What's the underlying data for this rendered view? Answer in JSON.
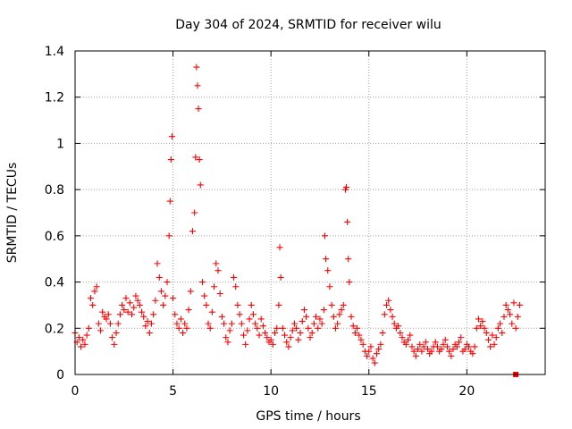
{
  "chart_data": {
    "type": "scatter",
    "title": "Day 304 of 2024, SRMTID for receiver wilu",
    "xlabel": "GPS time / hours",
    "ylabel": "SRMTID / TECUs",
    "xlim": [
      0,
      24
    ],
    "ylim": [
      0,
      1.4
    ],
    "xticks": [
      0,
      5,
      10,
      15,
      20
    ],
    "xtick_labels": [
      "0",
      "5",
      "10",
      "15",
      "20"
    ],
    "yticks": [
      0,
      0.2,
      0.4,
      0.6,
      0.8,
      1.0,
      1.2,
      1.4
    ],
    "ytick_labels": [
      "0",
      "0.2",
      "0.4",
      "0.6",
      "0.8",
      "1",
      "1.2",
      "1.4"
    ],
    "grid": true,
    "marker": "plus",
    "series": [
      {
        "name": "SRMTID",
        "color": "#ff0000",
        "x": [
          0.0,
          0.1,
          0.2,
          0.3,
          0.4,
          0.5,
          0.6,
          0.7,
          0.8,
          0.9,
          1.0,
          1.1,
          1.2,
          1.3,
          1.4,
          1.5,
          1.6,
          1.7,
          1.8,
          1.9,
          2.0,
          2.1,
          2.2,
          2.3,
          2.4,
          2.5,
          2.6,
          2.7,
          2.8,
          2.9,
          3.0,
          3.1,
          3.2,
          3.3,
          3.4,
          3.5,
          3.6,
          3.7,
          3.8,
          3.9,
          4.0,
          4.1,
          4.2,
          4.3,
          4.4,
          4.5,
          4.6,
          4.7,
          4.8,
          4.85,
          4.9,
          4.95,
          5.0,
          5.1,
          5.2,
          5.3,
          5.4,
          5.5,
          5.6,
          5.7,
          5.8,
          5.9,
          6.0,
          6.1,
          6.15,
          6.2,
          6.25,
          6.3,
          6.35,
          6.4,
          6.5,
          6.6,
          6.7,
          6.8,
          6.9,
          7.0,
          7.1,
          7.2,
          7.3,
          7.4,
          7.5,
          7.6,
          7.7,
          7.8,
          7.9,
          8.0,
          8.1,
          8.2,
          8.3,
          8.4,
          8.5,
          8.6,
          8.7,
          8.8,
          8.9,
          9.0,
          9.1,
          9.2,
          9.3,
          9.4,
          9.5,
          9.6,
          9.7,
          9.8,
          9.9,
          10.0,
          10.1,
          10.2,
          10.3,
          10.4,
          10.45,
          10.5,
          10.6,
          10.7,
          10.8,
          10.9,
          11.0,
          11.1,
          11.2,
          11.3,
          11.4,
          11.5,
          11.6,
          11.7,
          11.8,
          11.9,
          12.0,
          12.1,
          12.2,
          12.3,
          12.4,
          12.5,
          12.6,
          12.7,
          12.75,
          12.8,
          12.9,
          13.0,
          13.1,
          13.2,
          13.3,
          13.4,
          13.5,
          13.6,
          13.7,
          13.8,
          13.85,
          13.9,
          13.95,
          14.0,
          14.1,
          14.2,
          14.3,
          14.4,
          14.5,
          14.6,
          14.7,
          14.8,
          14.9,
          15.0,
          15.1,
          15.2,
          15.3,
          15.4,
          15.5,
          15.6,
          15.7,
          15.8,
          15.9,
          16.0,
          16.1,
          16.2,
          16.3,
          16.4,
          16.5,
          16.6,
          16.7,
          16.8,
          16.9,
          17.0,
          17.1,
          17.2,
          17.3,
          17.4,
          17.5,
          17.6,
          17.7,
          17.8,
          17.9,
          18.0,
          18.1,
          18.2,
          18.3,
          18.4,
          18.5,
          18.6,
          18.7,
          18.8,
          18.9,
          19.0,
          19.1,
          19.2,
          19.3,
          19.4,
          19.5,
          19.6,
          19.7,
          19.8,
          19.9,
          20.0,
          20.1,
          20.2,
          20.3,
          20.4,
          20.5,
          20.6,
          20.7,
          20.8,
          20.9,
          21.0,
          21.1,
          21.2,
          21.3,
          21.4,
          21.5,
          21.6,
          21.7,
          21.8,
          21.9,
          22.0,
          22.1,
          22.2,
          22.3,
          22.4,
          22.5,
          22.6,
          22.7
        ],
        "y": [
          0.18,
          0.14,
          0.16,
          0.12,
          0.15,
          0.13,
          0.17,
          0.2,
          0.33,
          0.3,
          0.36,
          0.38,
          0.22,
          0.19,
          0.27,
          0.25,
          0.24,
          0.26,
          0.22,
          0.16,
          0.13,
          0.18,
          0.22,
          0.26,
          0.3,
          0.28,
          0.33,
          0.27,
          0.31,
          0.26,
          0.29,
          0.34,
          0.32,
          0.3,
          0.27,
          0.25,
          0.21,
          0.23,
          0.18,
          0.22,
          0.26,
          0.32,
          0.48,
          0.42,
          0.36,
          0.3,
          0.34,
          0.4,
          0.6,
          0.75,
          0.93,
          1.03,
          0.33,
          0.26,
          0.22,
          0.2,
          0.24,
          0.18,
          0.22,
          0.2,
          0.28,
          0.36,
          0.62,
          0.7,
          0.94,
          1.33,
          1.25,
          1.15,
          0.93,
          0.82,
          0.4,
          0.34,
          0.3,
          0.22,
          0.2,
          0.27,
          0.38,
          0.48,
          0.45,
          0.35,
          0.25,
          0.22,
          0.16,
          0.14,
          0.19,
          0.22,
          0.42,
          0.38,
          0.3,
          0.26,
          0.22,
          0.17,
          0.13,
          0.19,
          0.24,
          0.3,
          0.26,
          0.22,
          0.2,
          0.17,
          0.24,
          0.21,
          0.18,
          0.16,
          0.14,
          0.15,
          0.13,
          0.18,
          0.2,
          0.3,
          0.55,
          0.42,
          0.2,
          0.17,
          0.14,
          0.12,
          0.16,
          0.19,
          0.22,
          0.2,
          0.15,
          0.18,
          0.23,
          0.28,
          0.25,
          0.2,
          0.16,
          0.18,
          0.22,
          0.25,
          0.2,
          0.24,
          0.22,
          0.28,
          0.6,
          0.5,
          0.45,
          0.38,
          0.3,
          0.25,
          0.2,
          0.22,
          0.26,
          0.28,
          0.3,
          0.8,
          0.81,
          0.66,
          0.5,
          0.4,
          0.25,
          0.21,
          0.18,
          0.2,
          0.17,
          0.15,
          0.13,
          0.1,
          0.08,
          0.1,
          0.12,
          0.07,
          0.05,
          0.09,
          0.11,
          0.13,
          0.18,
          0.26,
          0.3,
          0.32,
          0.28,
          0.25,
          0.22,
          0.2,
          0.21,
          0.18,
          0.16,
          0.14,
          0.13,
          0.15,
          0.17,
          0.12,
          0.1,
          0.08,
          0.11,
          0.13,
          0.1,
          0.12,
          0.14,
          0.11,
          0.09,
          0.1,
          0.12,
          0.14,
          0.12,
          0.1,
          0.11,
          0.13,
          0.15,
          0.12,
          0.1,
          0.08,
          0.11,
          0.13,
          0.12,
          0.14,
          0.16,
          0.1,
          0.11,
          0.13,
          0.12,
          0.1,
          0.09,
          0.12,
          0.2,
          0.24,
          0.21,
          0.23,
          0.2,
          0.18,
          0.15,
          0.12,
          0.17,
          0.13,
          0.16,
          0.2,
          0.22,
          0.18,
          0.25,
          0.3,
          0.28,
          0.26,
          0.22,
          0.31,
          0.2,
          0.25,
          0.3
        ]
      }
    ],
    "extra_points": [
      {
        "x": 22.5,
        "y": 0.0
      }
    ]
  }
}
